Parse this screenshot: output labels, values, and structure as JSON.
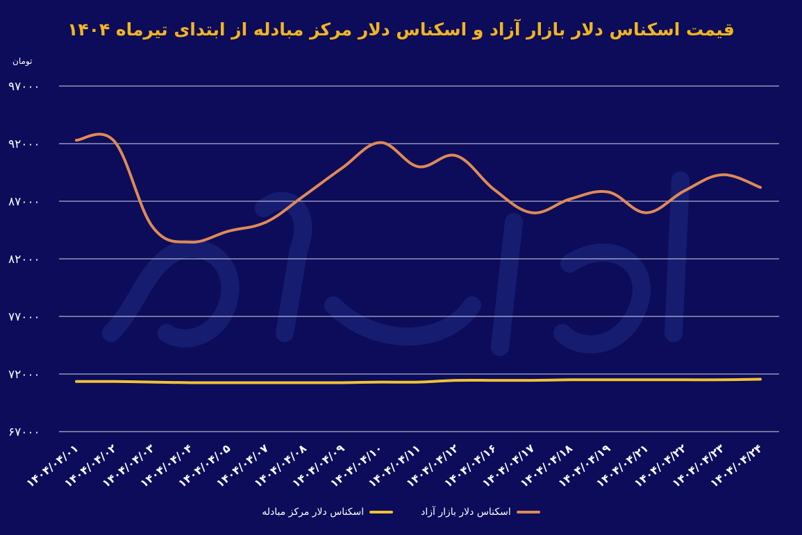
{
  "title": "قیمت اسکناس دلار بازار آزاد و اسکناس دلار مرکز مبادله از ابتدای تیرماه ۱۴۰۴",
  "colors": {
    "background": "#0c0c5a",
    "title": "#f2b51e",
    "free_market": "#e08a55",
    "exchange_center": "#f2c232",
    "grid": "#ffffff"
  },
  "chart_data": {
    "type": "line",
    "title": "قیمت اسکناس دلار بازار آزاد و اسکناس دلار مرکز مبادله از ابتدای تیرماه ۱۴۰۴",
    "ylabel": "تومان",
    "xlabel": "",
    "ylim": [
      67000,
      97000
    ],
    "yticks": [
      "۹۷۰۰۰",
      "۹۲۰۰۰",
      "۸۷۰۰۰",
      "۸۲۰۰۰",
      "۷۷۰۰۰",
      "۷۲۰۰۰",
      "۶۷۰۰۰"
    ],
    "ytick_values": [
      97000,
      92000,
      87000,
      82000,
      77000,
      72000,
      67000
    ],
    "grid": true,
    "legend_position": "bottom-center",
    "categories": [
      "۱۴۰۴/۰۴/۰۱",
      "۱۴۰۴/۰۴/۰۲",
      "۱۴۰۴/۰۴/۰۳",
      "۱۴۰۴/۰۴/۰۴",
      "۱۴۰۴/۰۴/۰۵",
      "۱۴۰۴/۰۴/۰۷",
      "۱۴۰۴/۰۴/۰۸",
      "۱۴۰۴/۰۴/۰۹",
      "۱۴۰۴/۰۴/۱۰",
      "۱۴۰۴/۰۴/۱۱",
      "۱۴۰۴/۰۴/۱۲",
      "۱۴۰۴/۰۴/۱۶",
      "۱۴۰۴/۰۴/۱۷",
      "۱۴۰۴/۰۴/۱۸",
      "۱۴۰۴/۰۴/۱۹",
      "۱۴۰۴/۰۴/۲۱",
      "۱۴۰۴/۰۴/۲۲",
      "۱۴۰۴/۰۴/۲۳",
      "۱۴۰۴/۰۴/۲۴"
    ],
    "series": [
      {
        "name": "اسکناس دلار بازار آزاد",
        "color": "#e08a55",
        "values": [
          92300,
          92200,
          84800,
          83450,
          84400,
          85200,
          87500,
          89900,
          92100,
          90000,
          90950,
          88000,
          86000,
          87200,
          87800,
          86000,
          87900,
          89300,
          88200
        ]
      },
      {
        "name": "اسکناس دلار مرکز مبادله",
        "color": "#f2c232",
        "values": [
          71350,
          71350,
          71300,
          71250,
          71250,
          71250,
          71250,
          71250,
          71300,
          71300,
          71450,
          71450,
          71450,
          71500,
          71500,
          71500,
          71500,
          71500,
          71550
        ]
      }
    ]
  }
}
